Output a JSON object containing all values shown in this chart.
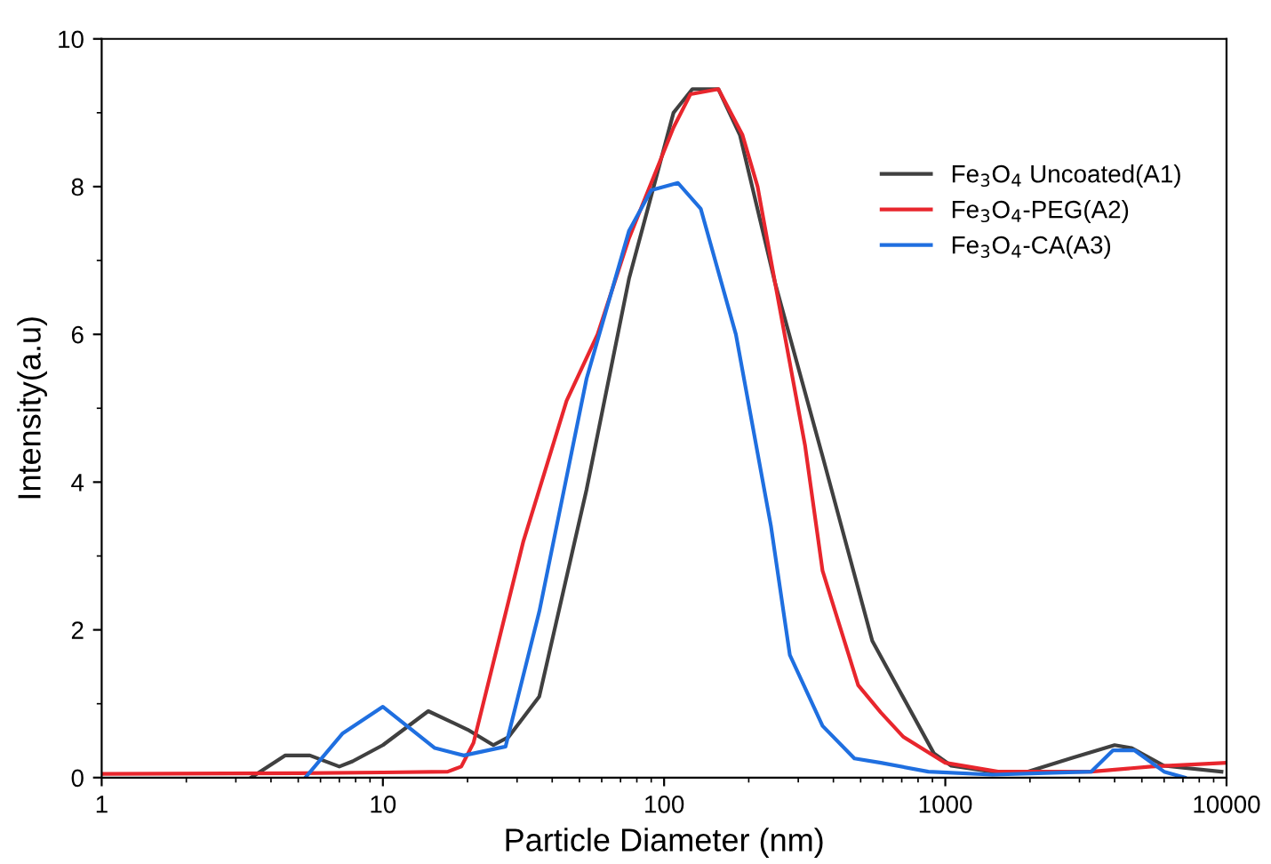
{
  "chart_data": {
    "type": "line",
    "xlabel": "Particle Diameter (nm)",
    "ylabel": "Intensity(a.u)",
    "log": "x",
    "xlim": [
      1,
      10000
    ],
    "xticks": [
      1,
      10,
      100,
      1000,
      10000
    ],
    "ylim": [
      0,
      10
    ],
    "yticks": [
      0,
      2,
      4,
      6,
      8,
      10
    ],
    "grid": false,
    "legend": "top right",
    "marker": "none",
    "line_style": "solid",
    "series": [
      {
        "name": "Fe$_{3}$O$_{4}$ Uncoated(A1)",
        "color": "#404040",
        "x": [
          3.4,
          4.5,
          5.5,
          7,
          7.8,
          10,
          14.5,
          20,
          24.7,
          28,
          36,
          53,
          75,
          108,
          126,
          156,
          186,
          248,
          366,
          550,
          910,
          1050,
          1470,
          1960,
          2850,
          4000,
          4600,
          6000,
          9600
        ],
        "values": [
          0,
          0.3,
          0.3,
          0.15,
          0.22,
          0.44,
          0.9,
          0.65,
          0.44,
          0.55,
          1.1,
          3.9,
          6.75,
          9.0,
          9.32,
          9.32,
          8.7,
          6.7,
          4.35,
          1.85,
          0.33,
          0.16,
          0.08,
          0.08,
          0.27,
          0.44,
          0.4,
          0.16,
          0.08
        ]
      },
      {
        "name": "Fe$_{3}$O$_{4}$-PEG(A2)",
        "color": "#e8262d",
        "x": [
          1,
          5,
          10,
          17,
          19,
          21,
          31.6,
          45,
          58,
          75,
          108,
          124,
          156,
          190,
          215,
          248,
          317,
          366,
          490,
          590,
          710,
          1000,
          1540,
          3300,
          5400,
          10000
        ],
        "values": [
          0.05,
          0.06,
          0.07,
          0.08,
          0.15,
          0.47,
          3.2,
          5.1,
          6.0,
          7.3,
          8.8,
          9.25,
          9.32,
          8.7,
          8.0,
          6.7,
          4.5,
          2.8,
          1.25,
          0.88,
          0.55,
          0.2,
          0.08,
          0.08,
          0.15,
          0.2
        ]
      },
      {
        "name": "Fe$_{3}$O$_{4}$-CA(A3)",
        "color": "#1f6fe0",
        "x": [
          5.3,
          7.2,
          10,
          15.3,
          19.4,
          27.3,
          36,
          53,
          75,
          90,
          112,
          135,
          180,
          240,
          280,
          366,
          475,
          590,
          870,
          1470,
          3300,
          3950,
          4700,
          6000,
          7100
        ],
        "values": [
          0,
          0.6,
          0.96,
          0.4,
          0.3,
          0.42,
          2.25,
          5.4,
          7.4,
          7.95,
          8.05,
          7.7,
          6.0,
          3.4,
          1.66,
          0.7,
          0.26,
          0.2,
          0.08,
          0.04,
          0.08,
          0.37,
          0.37,
          0.08,
          0
        ]
      }
    ]
  }
}
